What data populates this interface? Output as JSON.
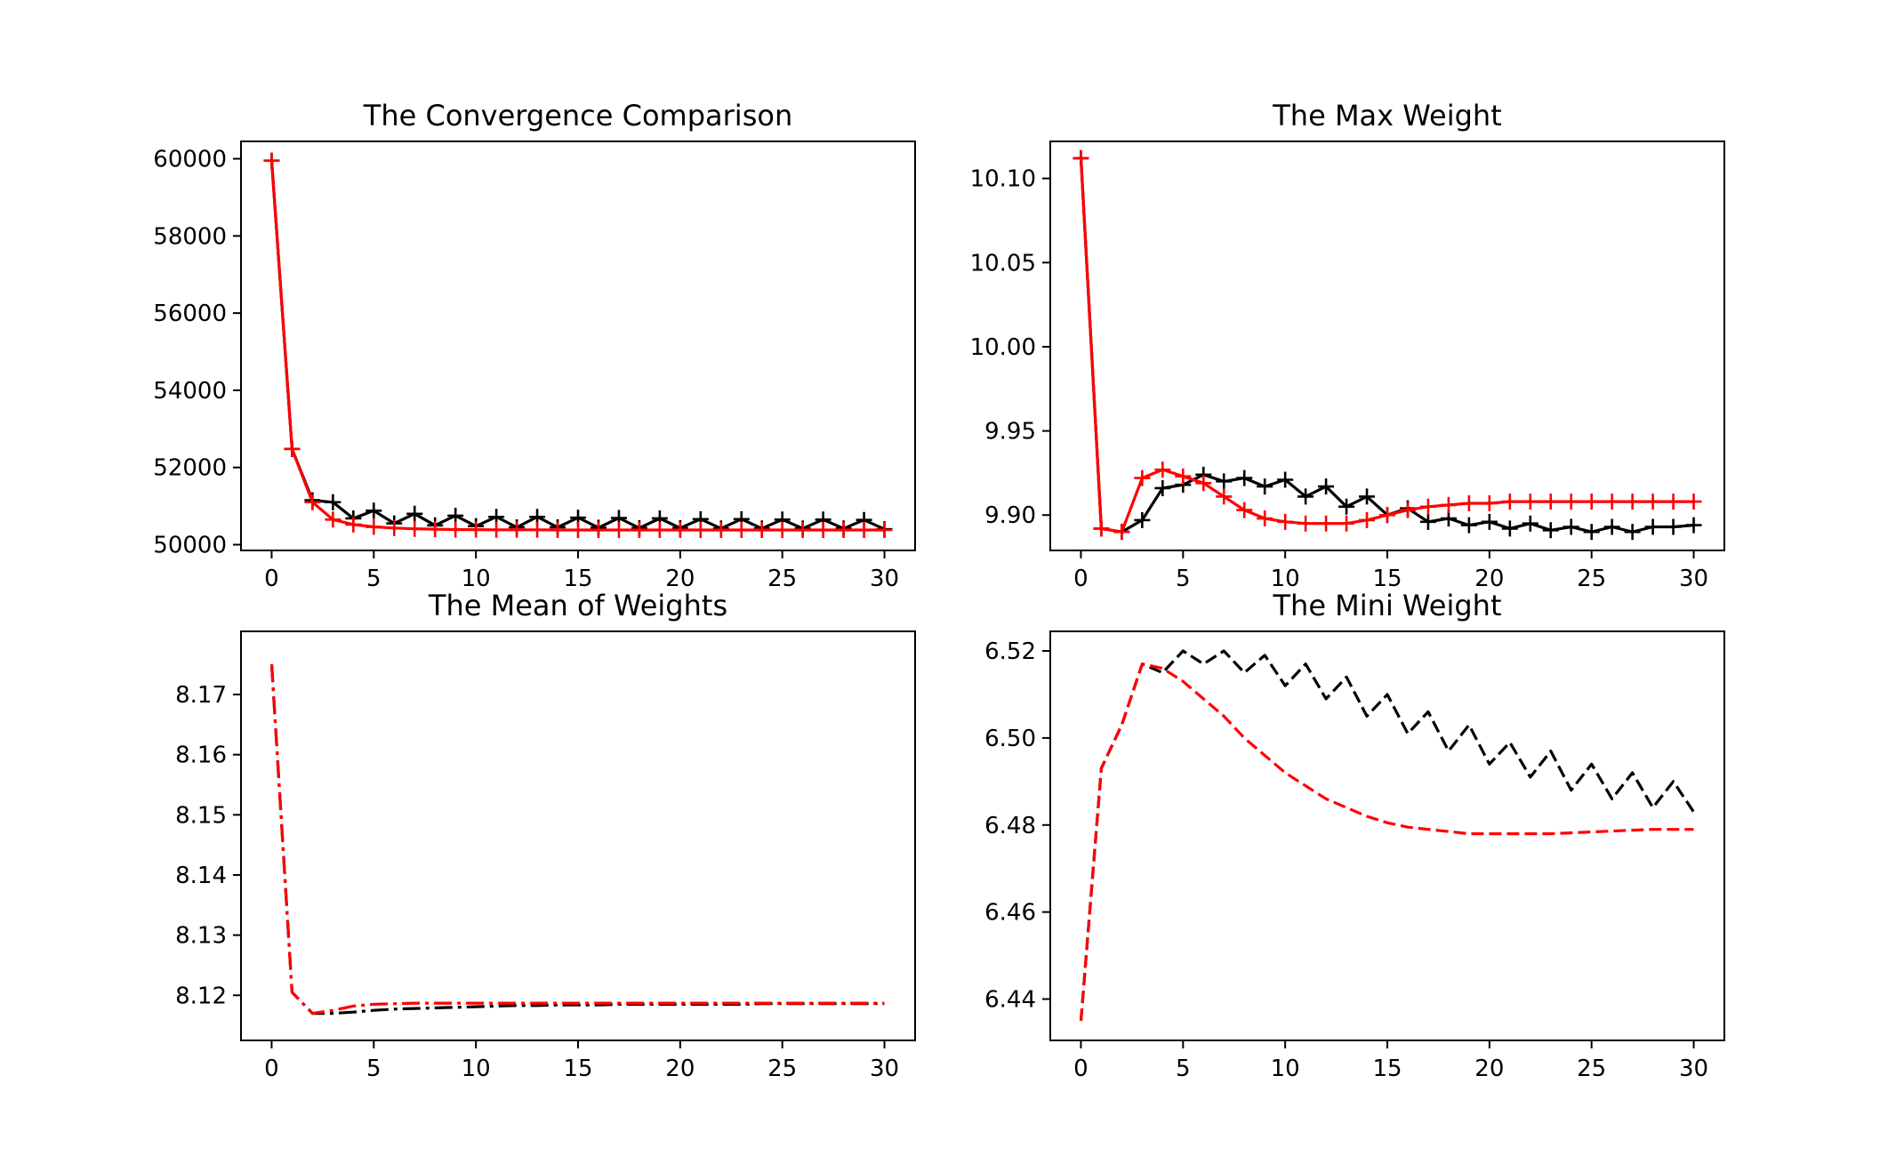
{
  "chart_data": [
    {
      "type": "line",
      "title": "The Convergence Comparison",
      "xlabel": "",
      "ylabel": "",
      "xlim": [
        -1.5,
        31.5
      ],
      "ylim": [
        49850,
        60450
      ],
      "xticks": [
        0,
        5,
        10,
        15,
        20,
        25,
        30
      ],
      "yticks": [
        50000,
        52000,
        54000,
        56000,
        58000,
        60000
      ],
      "grid": false,
      "colors": {
        "black": "#000000",
        "red": "#ff0000"
      },
      "series": [
        {
          "color": "#000000",
          "linestyle": "solid",
          "marker": "+",
          "x": [
            0,
            1,
            2,
            3,
            4,
            5,
            6,
            7,
            8,
            9,
            10,
            11,
            12,
            13,
            14,
            15,
            16,
            17,
            18,
            19,
            20,
            21,
            22,
            23,
            24,
            25,
            26,
            27,
            28,
            29,
            30
          ],
          "y": [
            59950,
            52480,
            51150,
            51100,
            50680,
            50880,
            50550,
            50800,
            50500,
            50750,
            50480,
            50720,
            50450,
            50720,
            50450,
            50700,
            50440,
            50690,
            50430,
            50680,
            50430,
            50660,
            50420,
            50660,
            50420,
            50650,
            50420,
            50650,
            50420,
            50640,
            50400
          ]
        },
        {
          "color": "#ff0000",
          "linestyle": "solid",
          "marker": "+",
          "x": [
            0,
            1,
            2,
            3,
            4,
            5,
            6,
            7,
            8,
            9,
            10,
            11,
            12,
            13,
            14,
            15,
            16,
            17,
            18,
            19,
            20,
            21,
            22,
            23,
            24,
            25,
            26,
            27,
            28,
            29,
            30
          ],
          "y": [
            59950,
            52480,
            51100,
            50650,
            50520,
            50460,
            50430,
            50410,
            50400,
            50390,
            50390,
            50385,
            50385,
            50385,
            50380,
            50380,
            50380,
            50380,
            50380,
            50380,
            50380,
            50380,
            50380,
            50380,
            50380,
            50380,
            50380,
            50380,
            50380,
            50380,
            50380
          ]
        }
      ]
    },
    {
      "type": "line",
      "title": "The Max Weight",
      "xlabel": "",
      "ylabel": "",
      "xlim": [
        -1.5,
        31.5
      ],
      "ylim": [
        9.879,
        10.122
      ],
      "xticks": [
        0,
        5,
        10,
        15,
        20,
        25,
        30
      ],
      "yticks": [
        9.9,
        9.95,
        10.0,
        10.05,
        10.1
      ],
      "ytick_labels": [
        "9.90",
        "9.95",
        "10.00",
        "10.05",
        "10.10"
      ],
      "grid": false,
      "series": [
        {
          "color": "#000000",
          "linestyle": "solid",
          "marker": "+",
          "x": [
            0,
            1,
            2,
            3,
            4,
            5,
            6,
            7,
            8,
            9,
            10,
            11,
            12,
            13,
            14,
            15,
            16,
            17,
            18,
            19,
            20,
            21,
            22,
            23,
            24,
            25,
            26,
            27,
            28,
            29,
            30
          ],
          "y": [
            10.112,
            9.892,
            9.89,
            9.897,
            9.916,
            9.918,
            9.924,
            9.92,
            9.922,
            9.917,
            9.921,
            9.911,
            9.917,
            9.905,
            9.911,
            9.9,
            9.904,
            9.896,
            9.898,
            9.894,
            9.896,
            9.892,
            9.895,
            9.891,
            9.893,
            9.89,
            9.893,
            9.89,
            9.893,
            9.893,
            9.894
          ]
        },
        {
          "color": "#ff0000",
          "linestyle": "solid",
          "marker": "+",
          "x": [
            0,
            1,
            2,
            3,
            4,
            5,
            6,
            7,
            8,
            9,
            10,
            11,
            12,
            13,
            14,
            15,
            16,
            17,
            18,
            19,
            20,
            21,
            22,
            23,
            24,
            25,
            26,
            27,
            28,
            29,
            30
          ],
          "y": [
            10.112,
            9.892,
            9.89,
            9.922,
            9.927,
            9.923,
            9.919,
            9.911,
            9.903,
            9.898,
            9.896,
            9.895,
            9.895,
            9.895,
            9.897,
            9.9,
            9.903,
            9.905,
            9.906,
            9.907,
            9.907,
            9.908,
            9.908,
            9.908,
            9.908,
            9.908,
            9.908,
            9.908,
            9.908,
            9.908,
            9.908
          ]
        }
      ]
    },
    {
      "type": "line",
      "title": "The Mean of Weights",
      "xlabel": "",
      "ylabel": "",
      "xlim": [
        -1.5,
        31.5
      ],
      "ylim": [
        8.1125,
        8.1805
      ],
      "xticks": [
        0,
        5,
        10,
        15,
        20,
        25,
        30
      ],
      "yticks": [
        8.12,
        8.13,
        8.14,
        8.15,
        8.16,
        8.17
      ],
      "ytick_labels": [
        "8.12",
        "8.13",
        "8.14",
        "8.15",
        "8.16",
        "8.17"
      ],
      "grid": false,
      "series": [
        {
          "color": "#000000",
          "linestyle": "dashdot",
          "marker": "",
          "x": [
            0,
            1,
            2,
            3,
            4,
            5,
            6,
            7,
            8,
            9,
            10,
            11,
            12,
            13,
            14,
            15,
            16,
            17,
            18,
            19,
            20,
            21,
            22,
            23,
            24,
            25,
            26,
            27,
            28,
            29,
            30
          ],
          "y": [
            8.175,
            8.1205,
            8.117,
            8.117,
            8.1172,
            8.1175,
            8.1177,
            8.1178,
            8.1179,
            8.118,
            8.1181,
            8.1182,
            8.1183,
            8.1183,
            8.1184,
            8.1184,
            8.1184,
            8.1185,
            8.1185,
            8.1185,
            8.1185,
            8.1185,
            8.1185,
            8.1185,
            8.1186,
            8.1186,
            8.1186,
            8.1186,
            8.1186,
            8.1186,
            8.1186
          ]
        },
        {
          "color": "#ff0000",
          "linestyle": "dashdot",
          "marker": "",
          "x": [
            0,
            1,
            2,
            3,
            4,
            5,
            6,
            7,
            8,
            9,
            10,
            11,
            12,
            13,
            14,
            15,
            16,
            17,
            18,
            19,
            20,
            21,
            22,
            23,
            24,
            25,
            26,
            27,
            28,
            29,
            30
          ],
          "y": [
            8.175,
            8.1205,
            8.117,
            8.1175,
            8.1182,
            8.1185,
            8.1186,
            8.1187,
            8.1187,
            8.1187,
            8.1187,
            8.1187,
            8.1187,
            8.1187,
            8.1187,
            8.1187,
            8.1187,
            8.1187,
            8.1187,
            8.1187,
            8.1187,
            8.1187,
            8.1187,
            8.1187,
            8.1187,
            8.1187,
            8.1187,
            8.1187,
            8.1187,
            8.1187,
            8.1187
          ]
        }
      ]
    },
    {
      "type": "line",
      "title": "The Mini Weight",
      "xlabel": "",
      "ylabel": "",
      "xlim": [
        -1.5,
        31.5
      ],
      "ylim": [
        6.4305,
        6.5245
      ],
      "xticks": [
        0,
        5,
        10,
        15,
        20,
        25,
        30
      ],
      "yticks": [
        6.44,
        6.46,
        6.48,
        6.5,
        6.52
      ],
      "ytick_labels": [
        "6.44",
        "6.46",
        "6.48",
        "6.50",
        "6.52"
      ],
      "grid": false,
      "series": [
        {
          "color": "#000000",
          "linestyle": "dashed",
          "marker": "",
          "x": [
            0,
            1,
            2,
            3,
            4,
            5,
            6,
            7,
            8,
            9,
            10,
            11,
            12,
            13,
            14,
            15,
            16,
            17,
            18,
            19,
            20,
            21,
            22,
            23,
            24,
            25,
            26,
            27,
            28,
            29,
            30
          ],
          "y": [
            6.435,
            6.493,
            6.503,
            6.517,
            6.515,
            6.52,
            6.517,
            6.52,
            6.515,
            6.519,
            6.512,
            6.517,
            6.509,
            6.514,
            6.505,
            6.51,
            6.501,
            6.506,
            6.497,
            6.503,
            6.494,
            6.499,
            6.491,
            6.497,
            6.488,
            6.494,
            6.486,
            6.492,
            6.484,
            6.49,
            6.483
          ]
        },
        {
          "color": "#ff0000",
          "linestyle": "dashed",
          "marker": "",
          "x": [
            0,
            1,
            2,
            3,
            4,
            5,
            6,
            7,
            8,
            9,
            10,
            11,
            12,
            13,
            14,
            15,
            16,
            17,
            18,
            19,
            20,
            21,
            22,
            23,
            24,
            25,
            26,
            27,
            28,
            29,
            30
          ],
          "y": [
            6.435,
            6.493,
            6.503,
            6.517,
            6.516,
            6.513,
            6.509,
            6.505,
            6.5,
            6.496,
            6.492,
            6.489,
            6.486,
            6.484,
            6.482,
            6.4805,
            6.4795,
            6.479,
            6.4785,
            6.478,
            6.478,
            6.478,
            6.478,
            6.478,
            6.4782,
            6.4784,
            6.4786,
            6.4788,
            6.479,
            6.479,
            6.479
          ]
        }
      ]
    }
  ]
}
